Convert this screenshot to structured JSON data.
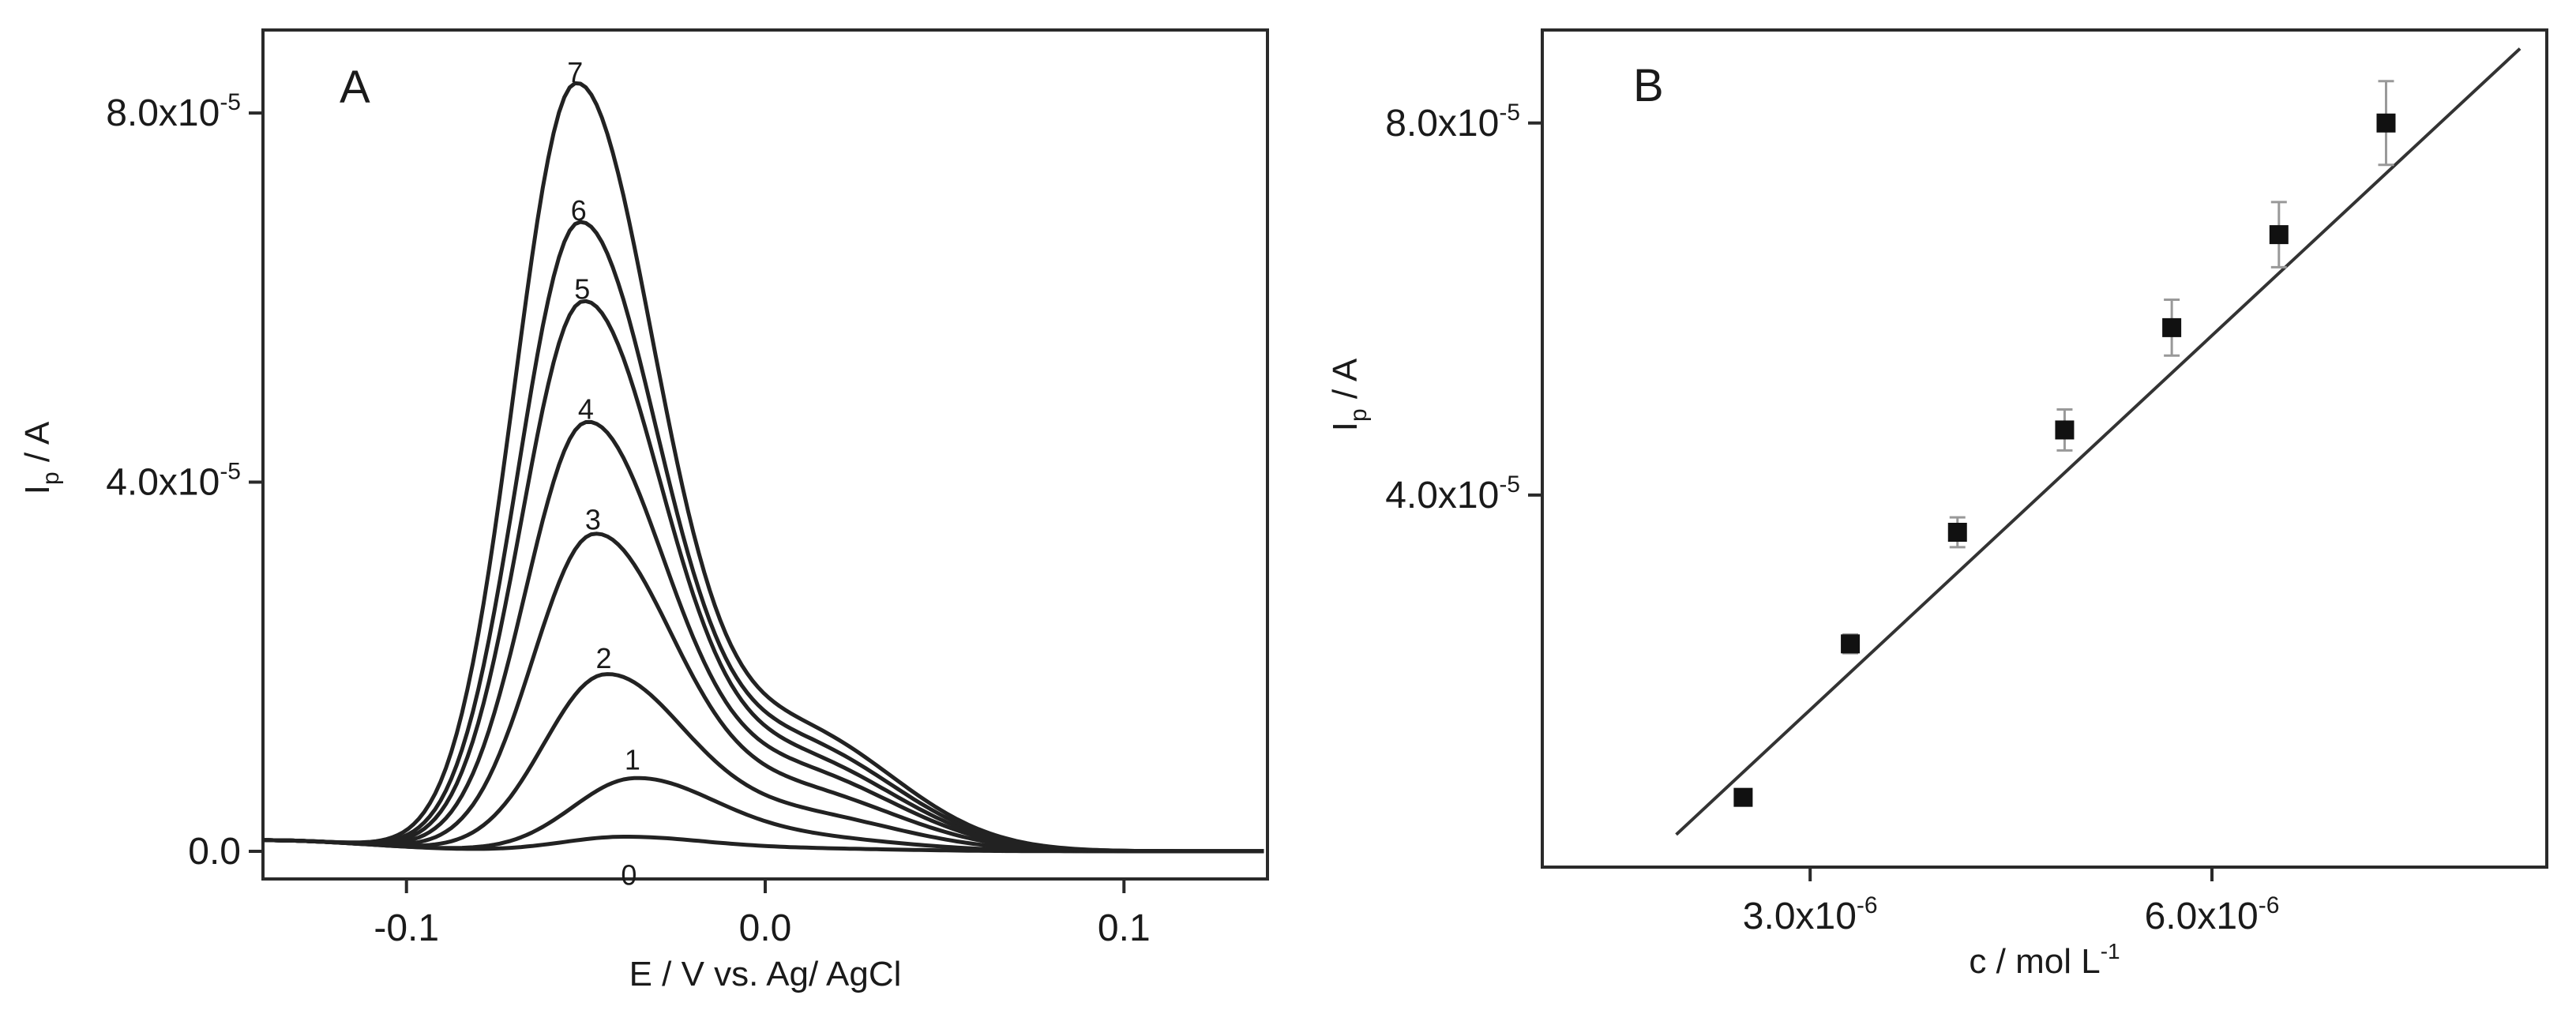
{
  "chart_data": [
    {
      "panel": "A",
      "type": "line",
      "xlabel": "E / V vs. Ag/ AgCl",
      "ylabel_main": "I",
      "ylabel_sub": "p",
      "ylabel_rest": " / A",
      "xlim": [
        -0.14,
        0.14
      ],
      "ylim": [
        -3e-06,
        8.9e-05
      ],
      "xticks": [
        {
          "value": -0.1,
          "label": "-0.1"
        },
        {
          "value": 0.0,
          "label": "0.0"
        },
        {
          "value": 0.1,
          "label": "0.1"
        }
      ],
      "yticks": [
        {
          "value": 0,
          "label": "0.0",
          "exp": ""
        },
        {
          "value": 4e-05,
          "label": "4.0x10",
          "exp": "-5"
        },
        {
          "value": 8e-05,
          "label": "8.0x10",
          "exp": "-5"
        }
      ],
      "series": [
        {
          "name": "0",
          "peak_e": -0.04,
          "peak": 1.5e-06,
          "shoulder": 3e-07
        },
        {
          "name": "1",
          "peak_e": -0.037,
          "peak": 7.5e-06,
          "shoulder": 1.5e-06
        },
        {
          "name": "2",
          "peak_e": -0.045,
          "peak": 1.85e-05,
          "shoulder": 4e-06
        },
        {
          "name": "3",
          "peak_e": -0.048,
          "peak": 3.35e-05,
          "shoulder": 6.5e-06
        },
        {
          "name": "4",
          "peak_e": -0.05,
          "peak": 4.55e-05,
          "shoulder": 8.5e-06
        },
        {
          "name": "5",
          "peak_e": -0.051,
          "peak": 5.85e-05,
          "shoulder": 1e-05
        },
        {
          "name": "6",
          "peak_e": -0.052,
          "peak": 6.7e-05,
          "shoulder": 1.15e-05
        },
        {
          "name": "7",
          "peak_e": -0.053,
          "peak": 8.2e-05,
          "shoulder": 1.3e-05
        }
      ]
    },
    {
      "panel": "B",
      "type": "scatter",
      "xlabel_main": "c / mol L",
      "xlabel_exp": "-1",
      "ylabel_main": "I",
      "ylabel_sub": "p",
      "ylabel_rest": " / A",
      "xlim": [
        1e-06,
        8.5e-06
      ],
      "ylim": [
        0,
        9e-05
      ],
      "xticks": [
        {
          "value": 3e-06,
          "label": "3.0x10",
          "exp": "-6"
        },
        {
          "value": 6e-06,
          "label": "6.0x10",
          "exp": "-6"
        }
      ],
      "yticks": [
        {
          "value": 4e-05,
          "label": "4.0x10",
          "exp": "-5"
        },
        {
          "value": 8e-05,
          "label": "8.0x10",
          "exp": "-5"
        }
      ],
      "points": [
        {
          "x": 2.5e-06,
          "y": 7.5e-06,
          "err": 6e-07
        },
        {
          "x": 3.3e-06,
          "y": 2.4e-05,
          "err": 1e-06
        },
        {
          "x": 4.1e-06,
          "y": 3.6e-05,
          "err": 1.6e-06
        },
        {
          "x": 4.9e-06,
          "y": 4.7e-05,
          "err": 2.2e-06
        },
        {
          "x": 5.7e-06,
          "y": 5.8e-05,
          "err": 3e-06
        },
        {
          "x": 6.5e-06,
          "y": 6.8e-05,
          "err": 3.5e-06
        },
        {
          "x": 7.3e-06,
          "y": 8e-05,
          "err": 4.5e-06
        }
      ],
      "fit_line": {
        "x0": 2e-06,
        "y0": 3.5e-06,
        "x1": 8.3e-06,
        "y1": 8.8e-05
      }
    }
  ]
}
